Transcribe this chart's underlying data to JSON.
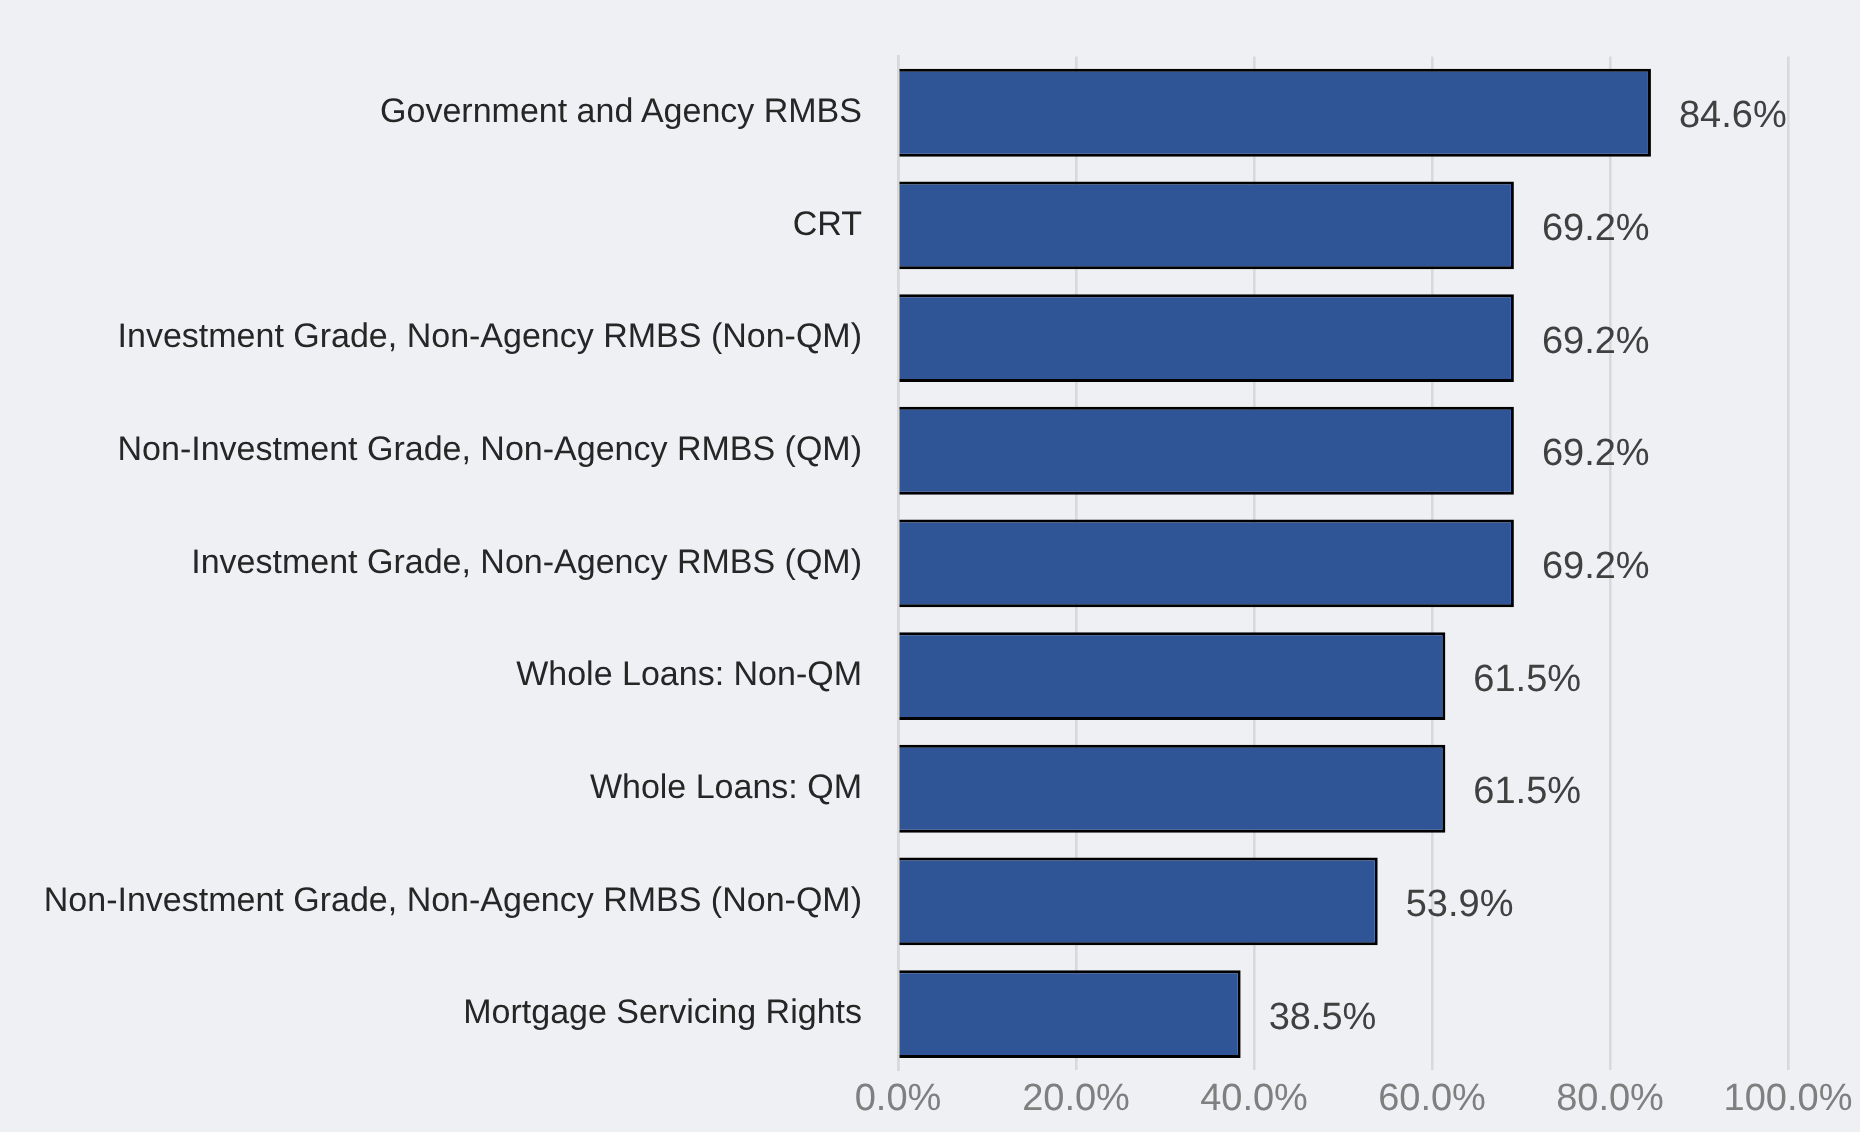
{
  "chart_data": {
    "type": "bar",
    "orientation": "horizontal",
    "categories": [
      "Government and Agency RMBS",
      "CRT",
      "Investment Grade, Non-Agency RMBS (Non-QM)",
      "Non-Investment Grade, Non-Agency RMBS (QM)",
      "Investment Grade, Non-Agency RMBS (QM)",
      "Whole Loans: Non-QM",
      "Whole Loans: QM",
      "Non-Investment Grade, Non-Agency RMBS (Non-QM)",
      "Mortgage Servicing Rights"
    ],
    "values": [
      84.6,
      69.2,
      69.2,
      69.2,
      69.2,
      61.5,
      61.5,
      53.9,
      38.5
    ],
    "value_labels": [
      "84.6%",
      "69.2%",
      "69.2%",
      "69.2%",
      "69.2%",
      "61.5%",
      "61.5%",
      "53.9%",
      "38.5%"
    ],
    "color": "#2f5597",
    "xlim": [
      0,
      100
    ],
    "xticks": [
      {
        "value": 0,
        "label": "0.0%"
      },
      {
        "value": 20,
        "label": "20.0%"
      },
      {
        "value": 40,
        "label": "40.0%"
      },
      {
        "value": 60,
        "label": "60.0%"
      },
      {
        "value": 80,
        "label": "80.0%"
      },
      {
        "value": 100,
        "label": "100.0%"
      }
    ],
    "grid": "x",
    "legend": false
  }
}
